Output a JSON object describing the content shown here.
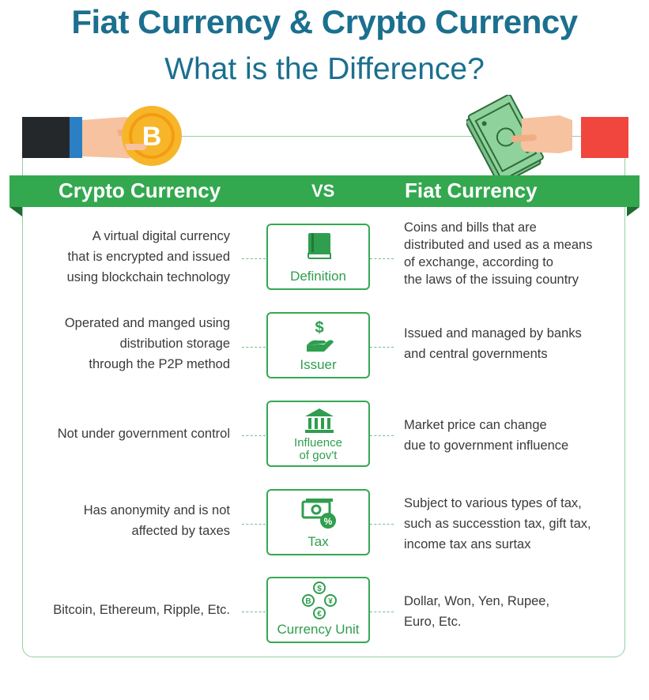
{
  "title": "Fiat Currency & Crypto Currency",
  "subtitle": "What is the Difference?",
  "banner": {
    "left": "Crypto Currency",
    "vs": "VS",
    "right": "Fiat Currency"
  },
  "coin_symbol": "B",
  "colors": {
    "title": "#1b6f8f",
    "banner": "#33a84f",
    "accent": "#36a853",
    "crypto_flag": "#25282b",
    "fiat_flag": "#f0463d",
    "coin": "#f7b52a"
  },
  "rows": [
    {
      "category": "Definition",
      "icon": "book-icon",
      "crypto": [
        "A virtual digital currency",
        "that is encrypted and issued",
        "using blockchain technology"
      ],
      "fiat": [
        "Coins and bills that are",
        "distributed and used as a means",
        "of exchange, according to",
        "the laws of the issuing country"
      ]
    },
    {
      "category": "Issuer",
      "icon": "hand-dollar-icon",
      "crypto": [
        "Operated and manged using",
        "distribution storage",
        "through the P2P method"
      ],
      "fiat": [
        "Issued and managed by banks",
        "and central governments"
      ]
    },
    {
      "category_lines": [
        "Influence",
        "of gov't"
      ],
      "icon": "bank-building-icon",
      "crypto": [
        "Not under government control"
      ],
      "fiat": [
        "Market price can change",
        "due to government influence"
      ]
    },
    {
      "category": "Tax",
      "icon": "money-percent-icon",
      "crypto": [
        "Has anonymity and is not",
        "affected by taxes"
      ],
      "fiat": [
        "Subject to various types of tax,",
        "such as successtion tax, gift tax,",
        "income tax ans surtax"
      ]
    },
    {
      "category": "Currency Unit",
      "icon": "currency-exchange-icon",
      "icon_symbols": [
        "$",
        "¥",
        "€",
        "B"
      ],
      "crypto": [
        "Bitcoin, Ethereum, Ripple, Etc."
      ],
      "fiat": [
        "Dollar, Won, Yen, Rupee,",
        "Euro, Etc."
      ]
    }
  ]
}
